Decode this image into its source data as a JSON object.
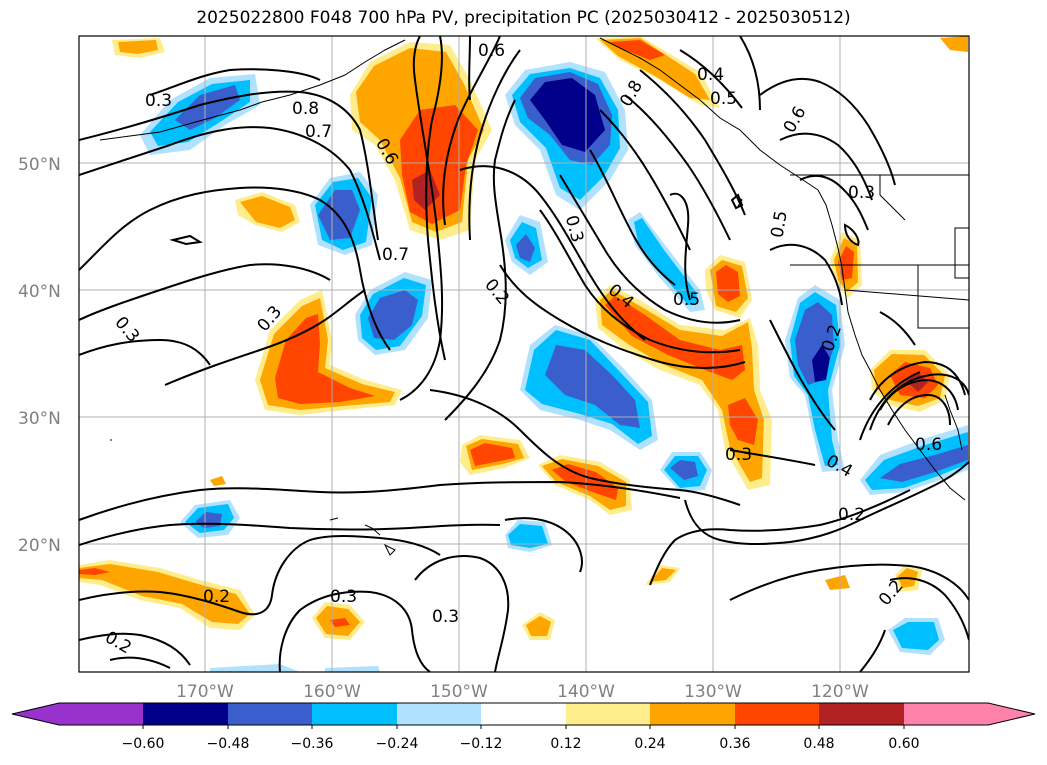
{
  "title": "2025022800 F048 700 hPa PV, precipitation PC (2025030412 - 2025030512)",
  "latitude_labels": [
    "50°N",
    "40°N",
    "30°N",
    "20°N"
  ],
  "longitude_labels": [
    "170°W",
    "160°W",
    "150°W",
    "140°W",
    "130°W",
    "120°W"
  ],
  "contour_labels": [
    "0.3",
    "0.8",
    "0.7",
    "0.6",
    "0.6",
    "0.4",
    "0.5",
    "0.6",
    "0.8",
    "0.3",
    "0.7",
    "0.3",
    "0.2",
    "0.4",
    "0.5",
    "0.5",
    "0.3",
    "0.2",
    "0.3",
    "0.3",
    "0.4",
    "0.2",
    "0.3",
    "0.2",
    "0.3",
    "0.2",
    "0.2",
    "0.6"
  ],
  "colorbar": {
    "tick_labels": [
      "−0.60",
      "−0.48",
      "−0.36",
      "−0.24",
      "−0.12",
      "0.12",
      "0.24",
      "0.36",
      "0.48",
      "0.60"
    ],
    "colors": {
      "below_min": "#9932cc",
      "n060_n048": "#00008b",
      "n048_n036": "#3a5fcd",
      "n036_n024": "#00bfff",
      "n024_n012": "#b0e2ff",
      "n012_p012": "#ffffff",
      "p012_p024": "#ffec8b",
      "p024_p036": "#ffa500",
      "p036_p048": "#ff4500",
      "p048_p060": "#b22222",
      "above_max": "#ff82ab"
    }
  }
}
